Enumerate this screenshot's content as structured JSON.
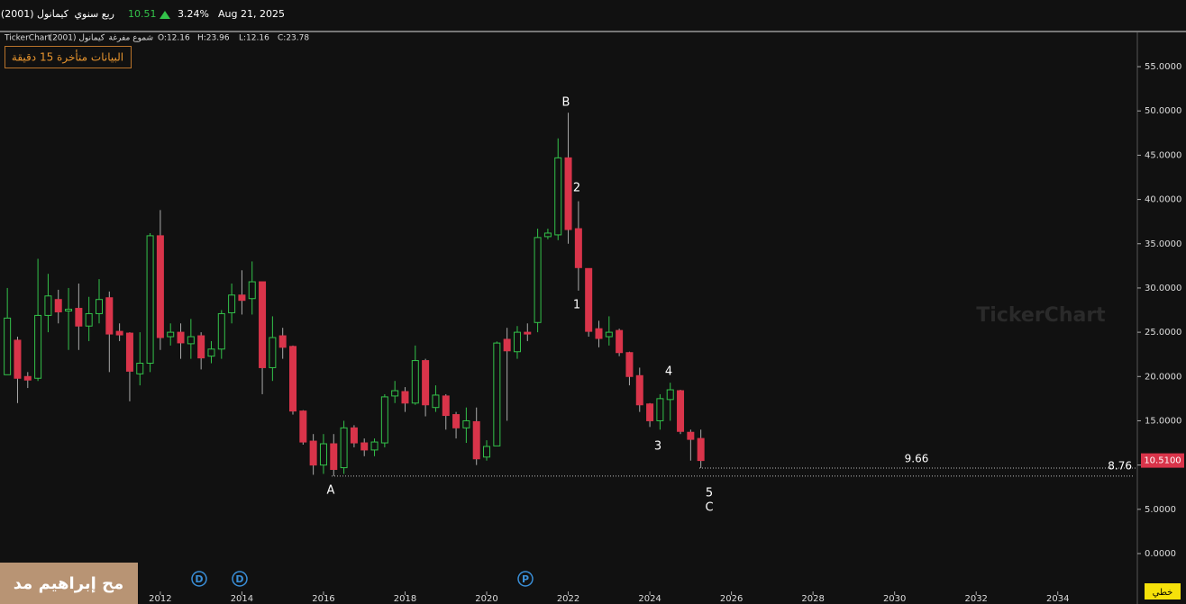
{
  "header": {
    "symbol": "(2001) كيمانول",
    "period": "ربع سنوي",
    "price": "10.51",
    "change": "3.24%",
    "date": "Aug 21, 2025",
    "source": "TickerChart",
    "name": "كيمانول (2001)",
    "style": "شموع مفرغة",
    "ohlc": [
      "O:12.16",
      "H:23.96",
      "L:12.16",
      "C:23.78"
    ],
    "notice": "البيانات متأخرة 15 دقيقة",
    "watermark": "TickerChart",
    "user": "مح إبراهيم مد",
    "chart_button": "خطي"
  },
  "chart_data": {
    "type": "candlestick",
    "hollow_up": true,
    "up_color": "#33c24a",
    "down_color": "#d9344a",
    "grid": false,
    "x": [
      2008.25,
      2008.5,
      2008.75,
      2009,
      2009.25,
      2009.5,
      2009.75,
      2010,
      2010.25,
      2010.5,
      2010.75,
      2011,
      2011.25,
      2011.5,
      2011.75,
      2012,
      2012.25,
      2012.5,
      2012.75,
      2013,
      2013.25,
      2013.5,
      2013.75,
      2014,
      2014.25,
      2014.5,
      2014.75,
      2015,
      2015.25,
      2015.5,
      2015.75,
      2016,
      2016.25,
      2016.5,
      2016.75,
      2017,
      2017.25,
      2017.5,
      2017.75,
      2018,
      2018.25,
      2018.5,
      2018.75,
      2019,
      2019.25,
      2019.5,
      2019.75,
      2020,
      2020.25,
      2020.5,
      2020.75,
      2021,
      2021.25,
      2021.5,
      2021.75,
      2022,
      2022.25,
      2022.5,
      2022.75,
      2023,
      2023.25,
      2023.5,
      2023.75,
      2024,
      2024.25,
      2024.5,
      2024.75,
      2025,
      2025.25
    ],
    "open": [
      20.2,
      24.1,
      20.0,
      19.8,
      26.9,
      28.7,
      27.4,
      27.7,
      25.7,
      27.1,
      28.9,
      25.1,
      24.9,
      20.3,
      21.5,
      35.9,
      24.5,
      25.0,
      23.7,
      24.6,
      22.3,
      23.1,
      27.2,
      29.2,
      28.8,
      30.7,
      21.0,
      24.6,
      23.4,
      16.1,
      12.7,
      10.0,
      12.4,
      9.7,
      14.2,
      12.5,
      11.7,
      12.5,
      17.8,
      18.3,
      17.0,
      21.8,
      16.5,
      17.8,
      15.7,
      14.2,
      14.9,
      10.9,
      12.16,
      24.2,
      22.8,
      25.0,
      26.1,
      35.8,
      36.0,
      44.7,
      36.7,
      32.2,
      25.4,
      24.5,
      25.2,
      22.7,
      20.1,
      16.9,
      15.0,
      17.4,
      18.4,
      13.7,
      13.0
    ],
    "high": [
      30.0,
      24.5,
      20.5,
      33.3,
      31.6,
      29.8,
      30.0,
      30.5,
      29.0,
      31.0,
      29.6,
      26.0,
      25.0,
      25.0,
      36.2,
      38.8,
      26.0,
      26.0,
      26.5,
      25.0,
      24.0,
      27.5,
      30.5,
      32.0,
      33.0,
      30.7,
      26.8,
      25.5,
      23.5,
      16.2,
      13.5,
      13.5,
      13.5,
      15.0,
      14.5,
      13.0,
      13.0,
      18.0,
      19.5,
      18.8,
      23.5,
      22.0,
      19.0,
      18.0,
      16.0,
      16.5,
      16.5,
      12.8,
      23.96,
      25.5,
      25.7,
      26.0,
      36.7,
      36.7,
      46.9,
      49.8,
      39.8,
      32.2,
      26.3,
      26.8,
      25.4,
      22.8,
      21.0,
      17.0,
      18.0,
      19.3,
      18.5,
      14.0,
      14.0
    ],
    "low": [
      20.2,
      17.0,
      18.7,
      19.5,
      25.0,
      26.0,
      23.0,
      23.0,
      24.0,
      26.0,
      20.5,
      24.0,
      17.2,
      19.0,
      20.5,
      23.0,
      23.5,
      22.0,
      22.0,
      20.8,
      21.5,
      22.0,
      26.0,
      27.0,
      27.0,
      18.0,
      19.5,
      22.0,
      15.7,
      12.3,
      8.9,
      9.0,
      8.76,
      9.0,
      12.0,
      11.0,
      11.0,
      12.0,
      17.0,
      16.0,
      16.8,
      15.5,
      16.0,
      14.0,
      13.0,
      12.5,
      10.0,
      10.5,
      12.16,
      15.0,
      22.0,
      24.0,
      25.0,
      35.5,
      35.4,
      35.0,
      29.7,
      24.5,
      23.3,
      23.5,
      22.3,
      19.0,
      16.0,
      14.3,
      14.0,
      15.0,
      13.5,
      10.5,
      9.66
    ],
    "close": [
      26.6,
      19.8,
      19.6,
      26.9,
      29.1,
      27.3,
      27.6,
      25.7,
      27.1,
      28.7,
      24.8,
      24.7,
      20.6,
      21.5,
      35.9,
      24.4,
      25.0,
      23.8,
      24.5,
      22.1,
      23.1,
      27.1,
      29.2,
      28.6,
      30.7,
      21.0,
      24.4,
      23.3,
      16.1,
      12.6,
      10.0,
      12.4,
      9.5,
      14.2,
      12.5,
      11.7,
      12.6,
      17.7,
      18.4,
      17.0,
      21.8,
      16.8,
      17.9,
      15.6,
      14.2,
      15.0,
      10.7,
      12.1,
      23.78,
      22.9,
      25.0,
      24.8,
      35.7,
      36.2,
      44.7,
      36.6,
      32.3,
      25.1,
      24.3,
      25.0,
      22.7,
      20.0,
      16.8,
      15.0,
      17.5,
      18.5,
      13.8,
      12.9,
      10.51
    ],
    "xlim": [
      2008.07,
      2035.95
    ],
    "xticks": [
      2012,
      2014,
      2016,
      2018,
      2020,
      2022,
      2024,
      2026,
      2028,
      2030,
      2032,
      2034
    ],
    "ylim": [
      -4.07,
      58.87
    ],
    "yticks": [
      {
        "value": 0,
        "label": "0.0000"
      },
      {
        "value": 5,
        "label": "5.0000"
      },
      {
        "value": 10,
        "label": "10.0000"
      },
      {
        "value": 15,
        "label": "15.0000"
      },
      {
        "value": 20,
        "label": "20.0000"
      },
      {
        "value": 25,
        "label": "25.0000"
      },
      {
        "value": 30,
        "label": "30.0000"
      },
      {
        "value": 35,
        "label": "35.0000"
      },
      {
        "value": 40,
        "label": "40.0000"
      },
      {
        "value": 45,
        "label": "45.0000"
      },
      {
        "value": 50,
        "label": "50.0000"
      },
      {
        "value": 55,
        "label": "55.0000"
      }
    ],
    "last_price": {
      "value": 10.51,
      "label": "10.5100"
    },
    "levels": [
      9.66,
      8.76
    ],
    "annotations": [
      "A",
      "B",
      "1",
      "2",
      "3",
      "4",
      "5",
      "C"
    ],
    "events": [
      "D",
      "D",
      "P"
    ]
  }
}
